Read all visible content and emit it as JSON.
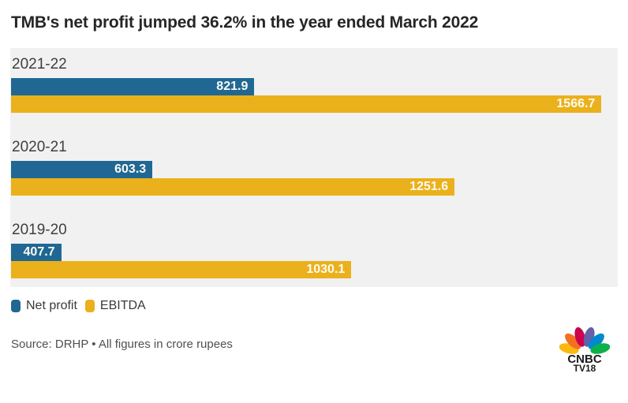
{
  "chart_data": {
    "type": "bar",
    "orientation": "horizontal",
    "title": "TMB's net profit jumped 36.2% in the year ended March 2022",
    "categories": [
      "2021-22",
      "2020-21",
      "2019-20"
    ],
    "series": [
      {
        "name": "Net profit",
        "color": "#206893",
        "values": [
          821.9,
          603.3,
          407.7
        ]
      },
      {
        "name": "EBITDA",
        "color": "#EBB11C",
        "values": [
          1566.7,
          1251.6,
          1030.1
        ]
      }
    ],
    "unit": "crore rupees",
    "xlim": [
      300,
      1600
    ],
    "grid": false,
    "value_labels": "inside-end",
    "legend_position": "bottom-left",
    "panel_background": "#F1F1F2",
    "value_label_color": "#FCFBF3"
  },
  "legend": {
    "items": [
      {
        "label": "Net profit",
        "color": "#206893"
      },
      {
        "label": "EBITDA",
        "color": "#EBB11C"
      }
    ]
  },
  "footer": {
    "source": "Source: DRHP • All figures in crore rupees"
  },
  "logo": {
    "line1": "CNBC",
    "line2": "TV18",
    "feather_colors": [
      "#FCB711",
      "#F37021",
      "#CC004C",
      "#6460AA",
      "#0089D0",
      "#0DB14B"
    ]
  }
}
